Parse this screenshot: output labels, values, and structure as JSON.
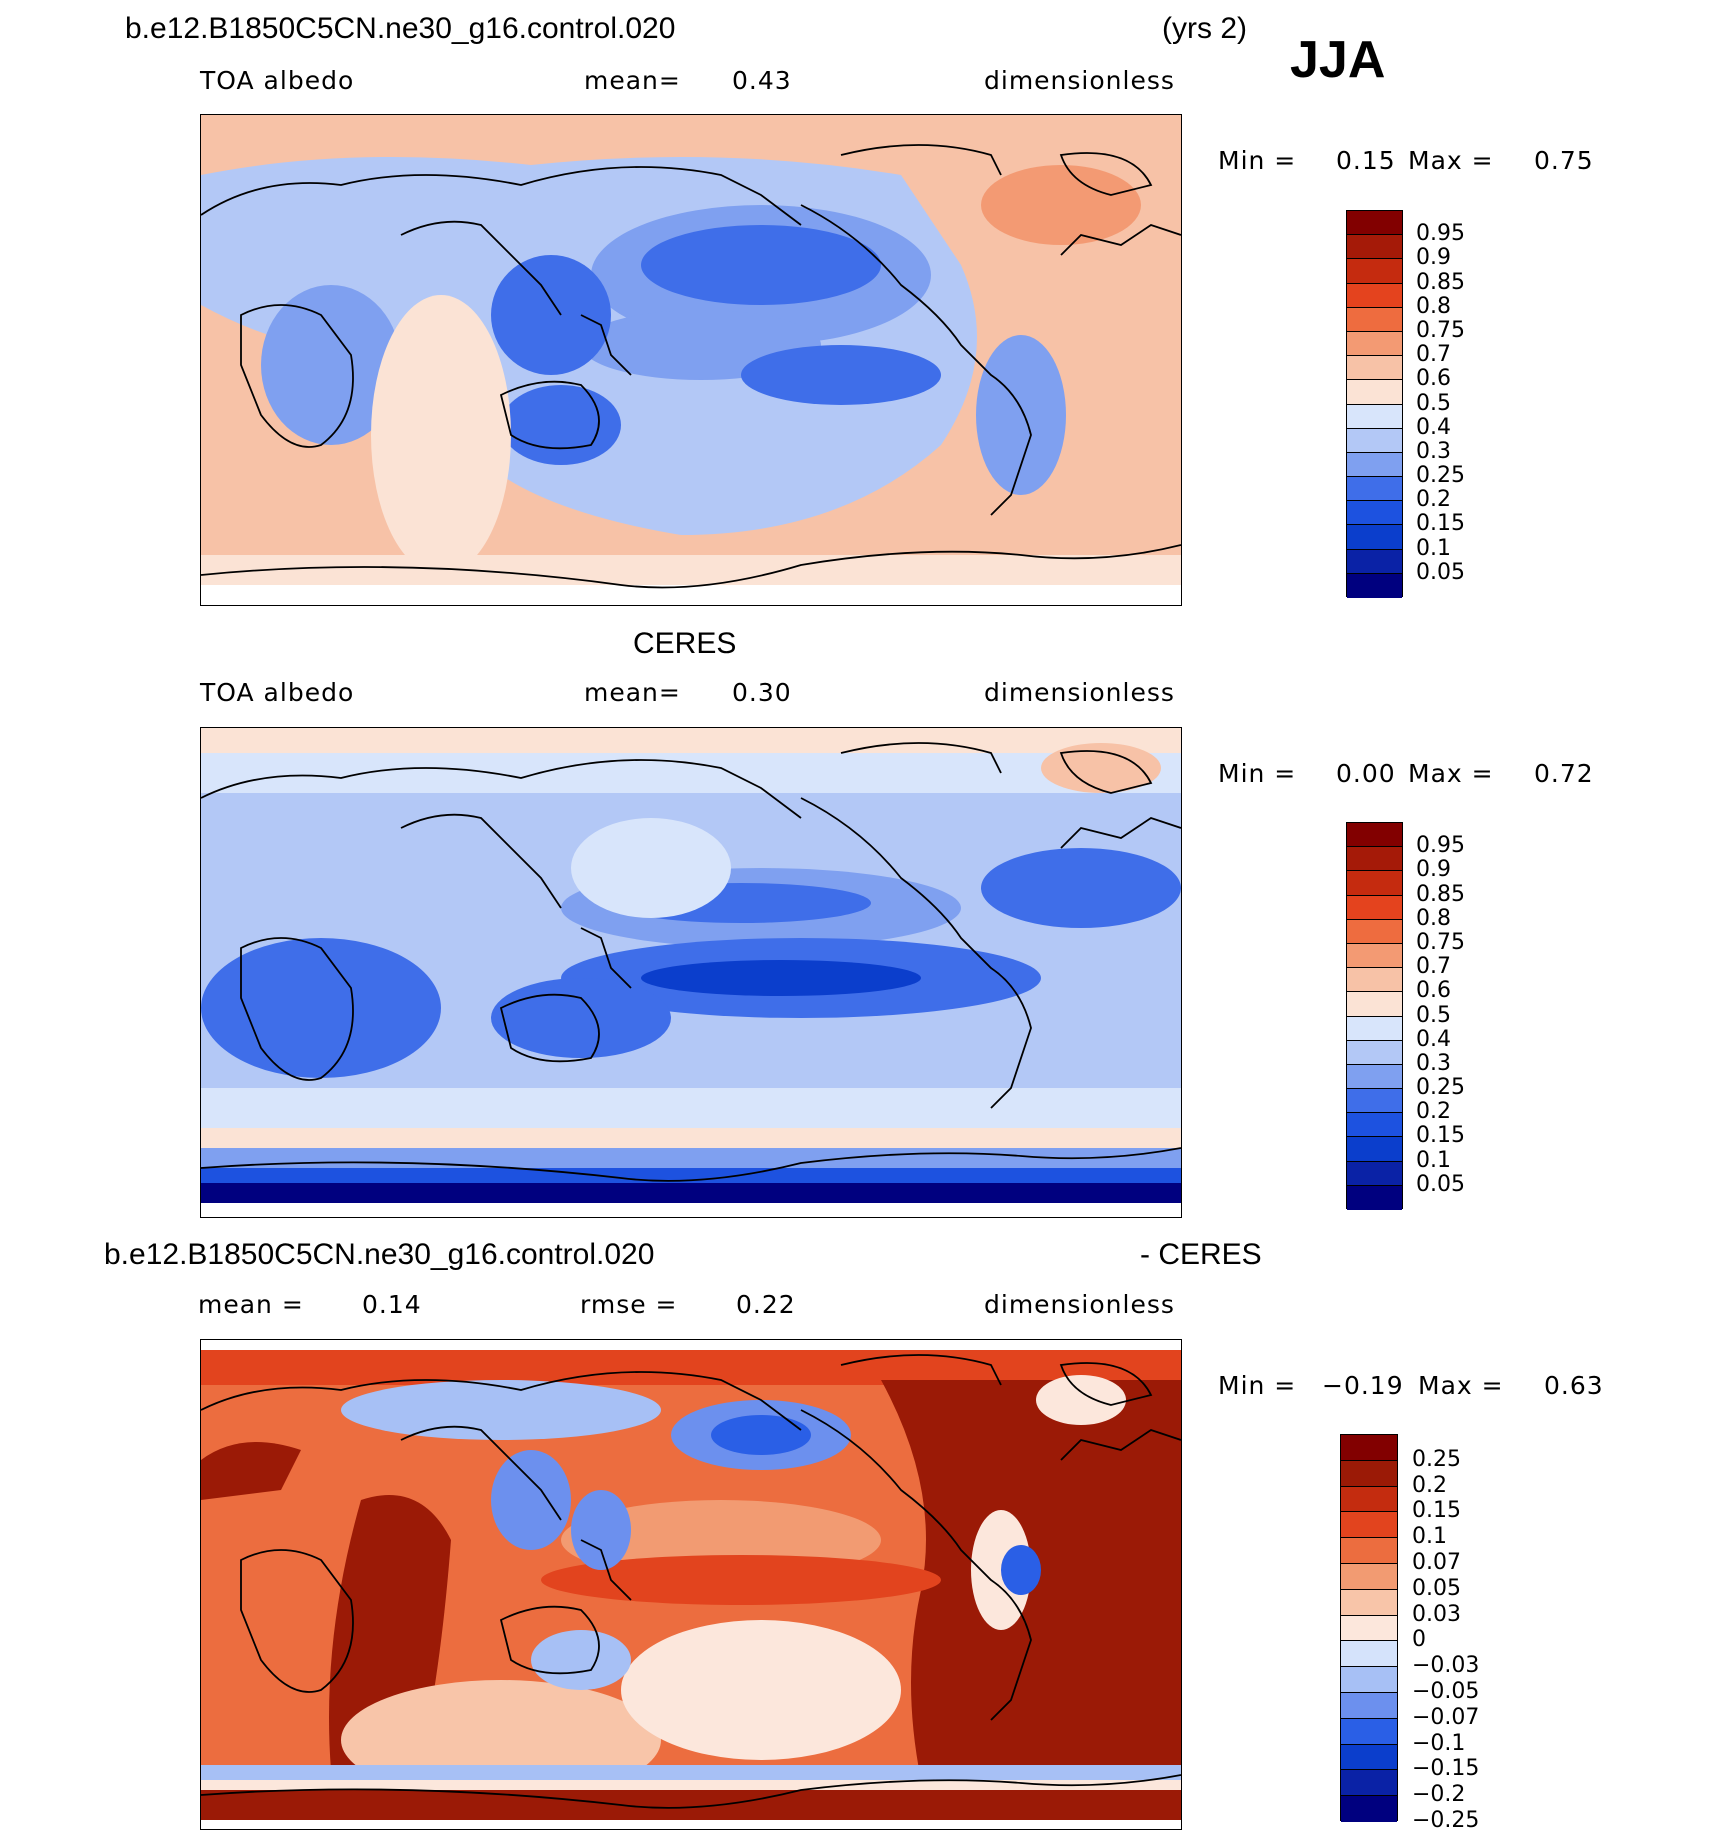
{
  "season": "JJA",
  "colors": {
    "seq": [
      "#00007f",
      "#0a22a6",
      "#0b3ecc",
      "#1d52e0",
      "#3f6ee9",
      "#7fa0f0",
      "#b3c8f6",
      "#d8e5fb",
      "#fbe3d5",
      "#f7c2a7",
      "#f39a73",
      "#ee6c3f",
      "#e4431e",
      "#c52b0f",
      "#a51a08",
      "#820000"
    ],
    "diff": [
      "#00007f",
      "#0a22a6",
      "#0b3ecc",
      "#2a5fe6",
      "#6c90ee",
      "#a7c0f5",
      "#d5e3fb",
      "#fce7dc",
      "#f8c5a9",
      "#f29b72",
      "#ec6d3f",
      "#e2441e",
      "#c42c0f",
      "#9b1a06",
      "#820000"
    ]
  },
  "panels": [
    {
      "id": "model",
      "title_left": "b.e12.B1850C5CN.ne30_g16.control.020",
      "title_right": "(yrs 2)",
      "variable": "TOA albedo",
      "stat_label": "mean=",
      "stat_value": "0.43",
      "units": "dimensionless",
      "min_label": "Min =",
      "min_value": "0.15",
      "max_label": "Max =",
      "max_value": "0.75",
      "ticks": [
        "0.95",
        "0.9",
        "0.85",
        "0.8",
        "0.75",
        "0.7",
        "0.6",
        "0.5",
        "0.4",
        "0.3",
        "0.25",
        "0.2",
        "0.15",
        "0.1",
        "0.05"
      ]
    },
    {
      "id": "obs",
      "title_center": "CERES",
      "variable": "TOA albedo",
      "stat_label": "mean=",
      "stat_value": "0.30",
      "units": "dimensionless",
      "min_label": "Min =",
      "min_value": "0.00",
      "max_label": "Max =",
      "max_value": "0.72",
      "ticks": [
        "0.95",
        "0.9",
        "0.85",
        "0.8",
        "0.75",
        "0.7",
        "0.6",
        "0.5",
        "0.4",
        "0.3",
        "0.25",
        "0.2",
        "0.15",
        "0.1",
        "0.05"
      ]
    },
    {
      "id": "diff",
      "title_left": "b.e12.B1850C5CN.ne30_g16.control.020",
      "title_right": "- CERES",
      "stat_label": "mean =",
      "stat_value": "0.14",
      "stat2_label": "rmse =",
      "stat2_value": "0.22",
      "units": "dimensionless",
      "min_label": "Min =",
      "min_value": "−0.19",
      "max_label": "Max =",
      "max_value": "0.63",
      "ticks": [
        "0.25",
        "0.2",
        "0.15",
        "0.1",
        "0.07",
        "0.05",
        "0.03",
        "0",
        "−0.03",
        "−0.05",
        "−0.07",
        "−0.1",
        "−0.15",
        "−0.2",
        "−0.25"
      ]
    }
  ]
}
